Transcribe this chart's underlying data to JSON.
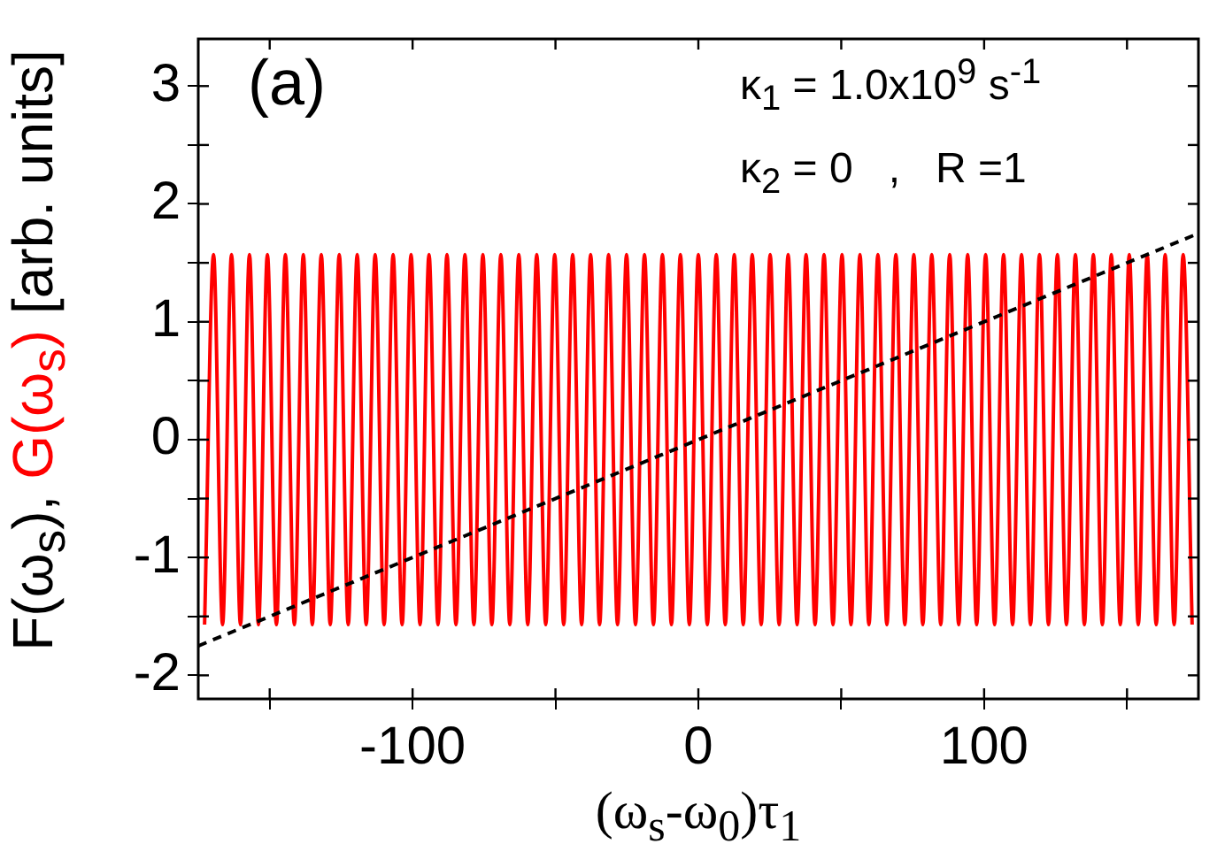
{
  "chart_data": {
    "type": "line",
    "xlabel": "(ω$_{s}$-ω$_{0}$)τ$_{1}$",
    "ylabel": "[arb. units]",
    "annotations": [
      "(a)",
      "κ$_{1}$ = 1.0x10$^{9}$ s$^{-1}$",
      "κ$_{2}$ = 0   ,   R =1"
    ],
    "xlim": [
      -175,
      175
    ],
    "ylim": [
      -2.2,
      3.4
    ],
    "xticks": [
      {
        "value": -150,
        "label": null
      },
      -100,
      {
        "value": -50,
        "label": null
      },
      0,
      {
        "value": 50,
        "label": null
      },
      100,
      {
        "value": 150,
        "label": null
      }
    ],
    "yticks": [
      -2,
      {
        "value": -1.5,
        "label": null
      },
      -1,
      {
        "value": -0.5,
        "label": null
      },
      0,
      {
        "value": 0.5,
        "label": null
      },
      1,
      {
        "value": 1.5,
        "label": null
      },
      2,
      {
        "value": 2.5,
        "label": null
      },
      3
    ],
    "marker": "none",
    "series": [
      {
        "name": "F(ω$_{s}$),",
        "color": "#000000",
        "line_style": "dashed",
        "x": [
          -175,
          175
        ],
        "values": [
          -1.75,
          1.75
        ]
      },
      {
        "name": "G(ω$_{s}$)",
        "color": "#ff0000",
        "line_style": "solid",
        "x": [
          -172.79,
          -169.65,
          -166.5,
          -163.36,
          -160.22,
          -157.08,
          -153.94,
          -150.8,
          -147.65,
          -144.51,
          -141.37,
          -138.23,
          -135.09,
          -131.95,
          -128.81,
          -125.66,
          -122.52,
          -119.38,
          -116.24,
          -113.1,
          -109.96,
          -106.81,
          -103.67,
          -100.53,
          -97.39,
          -94.25,
          -91.11,
          -87.96,
          -84.82,
          -81.68,
          -78.54,
          -75.4,
          -72.26,
          -69.12,
          -65.97,
          -62.83,
          -59.69,
          -56.55,
          -53.41,
          -50.27,
          -47.12,
          -43.98,
          -40.84,
          -37.7,
          -34.56,
          -31.42,
          -28.27,
          -25.13,
          -21.99,
          -18.85,
          -15.71,
          -12.57,
          -9.42,
          -6.28,
          -3.14,
          0,
          3.14,
          6.28,
          9.42,
          12.57,
          15.71,
          18.85,
          21.99,
          25.13,
          28.27,
          31.42,
          34.56,
          37.7,
          40.84,
          43.98,
          47.12,
          50.27,
          53.41,
          56.55,
          59.69,
          62.83,
          65.97,
          69.12,
          72.26,
          75.4,
          78.54,
          81.68,
          84.82,
          87.96,
          91.11,
          94.25,
          97.39,
          100.53,
          103.67,
          106.81,
          109.96,
          113.1,
          116.24,
          119.38,
          122.52,
          125.66,
          128.81,
          131.95,
          135.09,
          138.23,
          141.37,
          144.51,
          147.65,
          150.8,
          153.94,
          157.08,
          160.22,
          163.36,
          166.5,
          169.65,
          172.79
        ],
        "values": [
          -1.57,
          1.57,
          -1.57,
          1.57,
          -1.57,
          1.57,
          -1.57,
          1.57,
          -1.57,
          1.57,
          -1.57,
          1.57,
          -1.57,
          1.57,
          -1.57,
          1.57,
          -1.57,
          1.57,
          -1.57,
          1.57,
          -1.57,
          1.57,
          -1.57,
          1.57,
          -1.57,
          1.57,
          -1.57,
          1.57,
          -1.57,
          1.57,
          -1.57,
          1.57,
          -1.57,
          1.57,
          -1.57,
          1.57,
          -1.57,
          1.57,
          -1.57,
          1.57,
          -1.57,
          1.57,
          -1.57,
          1.57,
          -1.57,
          1.57,
          -1.57,
          1.57,
          -1.57,
          1.57,
          -1.57,
          1.57,
          -1.57,
          1.57,
          -1.57,
          1.57,
          -1.57,
          1.57,
          -1.57,
          1.57,
          -1.57,
          1.57,
          -1.57,
          1.57,
          -1.57,
          1.57,
          -1.57,
          1.57,
          -1.57,
          1.57,
          -1.57,
          1.57,
          -1.57,
          1.57,
          -1.57,
          1.57,
          -1.57,
          1.57,
          -1.57,
          1.57,
          -1.57,
          1.57,
          -1.57,
          1.57,
          -1.57,
          1.57,
          -1.57,
          1.57,
          -1.57,
          1.57,
          -1.57,
          1.57,
          -1.57,
          1.57,
          -1.57,
          1.57,
          -1.57,
          1.57,
          -1.57,
          1.57,
          -1.57,
          1.57,
          -1.57,
          1.57,
          -1.57,
          1.57,
          -1.57,
          1.57,
          -1.57,
          1.57,
          -1.57
        ]
      }
    ]
  }
}
